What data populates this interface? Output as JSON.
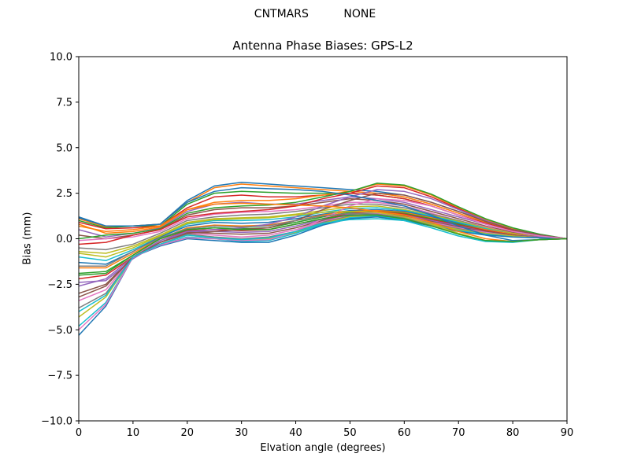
{
  "figure": {
    "suptitle_left": "CNTMARS",
    "suptitle_right": "NONE"
  },
  "chart_data": {
    "type": "line",
    "title": "Antenna Phase Biases: GPS-L2",
    "xlabel": "Elvation angle (degrees)",
    "ylabel": "Bias (mm)",
    "xlim": [
      0,
      90
    ],
    "ylim": [
      -10.0,
      10.0
    ],
    "xticks": [
      0,
      10,
      20,
      30,
      40,
      50,
      60,
      70,
      80,
      90
    ],
    "xtick_labels": [
      "0",
      "10",
      "20",
      "30",
      "40",
      "50",
      "60",
      "70",
      "80",
      "90"
    ],
    "yticks": [
      -10.0,
      -7.5,
      -5.0,
      -2.5,
      0.0,
      2.5,
      5.0,
      7.5,
      10.0
    ],
    "ytick_labels": [
      "−10.0",
      "−7.5",
      "−5.0",
      "−2.5",
      "0.0",
      "2.5",
      "5.0",
      "7.5",
      "10.0"
    ],
    "grid": false,
    "legend": "none",
    "colors": [
      "#1f77b4",
      "#ff7f0e",
      "#2ca02c",
      "#d62728",
      "#9467bd",
      "#8c564b",
      "#e377c2",
      "#7f7f7f",
      "#bcbd22",
      "#17becf"
    ],
    "x": [
      0,
      5,
      10,
      15,
      20,
      25,
      30,
      35,
      40,
      45,
      50,
      55,
      60,
      65,
      70,
      75,
      80,
      85,
      90
    ],
    "series": [
      {
        "values": [
          1.2,
          0.7,
          0.7,
          0.8,
          2.1,
          2.9,
          3.1,
          3.0,
          2.9,
          2.8,
          2.7,
          2.6,
          2.4,
          2.0,
          1.5,
          1.0,
          0.5,
          0.2,
          0.0
        ]
      },
      {
        "values": [
          1.1,
          0.65,
          0.7,
          0.8,
          2.0,
          2.8,
          3.0,
          2.9,
          2.8,
          2.7,
          2.6,
          2.5,
          2.3,
          1.9,
          1.4,
          0.9,
          0.5,
          0.2,
          0.0
        ]
      },
      {
        "values": [
          1.0,
          0.6,
          0.7,
          0.7,
          1.9,
          2.5,
          2.6,
          2.55,
          2.5,
          2.5,
          2.5,
          2.4,
          2.2,
          1.8,
          1.3,
          0.85,
          0.45,
          0.2,
          0.0
        ]
      },
      {
        "values": [
          0.9,
          0.55,
          0.6,
          0.7,
          1.7,
          2.3,
          2.4,
          2.3,
          2.3,
          2.4,
          2.5,
          2.4,
          2.2,
          1.8,
          1.3,
          0.85,
          0.45,
          0.2,
          0.0
        ]
      },
      {
        "values": [
          0.5,
          0.1,
          0.3,
          0.6,
          1.5,
          1.9,
          2.0,
          1.9,
          1.9,
          2.1,
          2.3,
          2.2,
          2.0,
          1.6,
          1.2,
          0.8,
          0.4,
          0.2,
          0.0
        ]
      },
      {
        "values": [
          0.2,
          0.0,
          0.2,
          0.5,
          1.3,
          1.6,
          1.7,
          1.7,
          1.8,
          2.0,
          2.2,
          2.1,
          1.9,
          1.5,
          1.1,
          0.7,
          0.35,
          0.15,
          0.0
        ]
      },
      {
        "values": [
          -0.1,
          0.0,
          0.1,
          0.4,
          1.1,
          1.35,
          1.45,
          1.5,
          1.6,
          1.8,
          2.0,
          2.0,
          1.8,
          1.4,
          1.0,
          0.65,
          0.3,
          0.1,
          0.0
        ]
      },
      {
        "values": [
          -0.5,
          -0.6,
          -0.3,
          0.3,
          1.0,
          1.2,
          1.3,
          1.35,
          1.5,
          1.7,
          1.9,
          1.9,
          1.7,
          1.35,
          1.0,
          0.6,
          0.3,
          0.1,
          0.0
        ]
      },
      {
        "values": [
          -0.7,
          -0.8,
          -0.4,
          0.2,
          0.9,
          1.1,
          1.15,
          1.2,
          1.35,
          1.55,
          1.75,
          1.8,
          1.6,
          1.3,
          0.95,
          0.6,
          0.3,
          0.1,
          0.0
        ]
      },
      {
        "values": [
          -1.0,
          -1.2,
          -0.6,
          0.1,
          0.8,
          1.0,
          1.0,
          1.05,
          1.2,
          1.45,
          1.65,
          1.7,
          1.55,
          1.25,
          0.9,
          0.55,
          0.25,
          0.1,
          0.0
        ]
      },
      {
        "values": [
          -1.3,
          -1.4,
          -0.7,
          0.1,
          0.7,
          0.9,
          0.85,
          0.9,
          1.1,
          1.35,
          1.55,
          1.6,
          1.5,
          1.2,
          0.85,
          0.5,
          0.25,
          0.1,
          0.0
        ]
      },
      {
        "values": [
          -1.6,
          -1.6,
          -0.8,
          0.0,
          0.6,
          0.75,
          0.7,
          0.75,
          1.0,
          1.3,
          1.5,
          1.55,
          1.45,
          1.15,
          0.8,
          0.5,
          0.25,
          0.1,
          0.0
        ]
      },
      {
        "values": [
          -1.9,
          -1.8,
          -0.9,
          0.0,
          0.5,
          0.6,
          0.55,
          0.6,
          0.9,
          1.2,
          1.45,
          1.5,
          1.4,
          1.1,
          0.8,
          0.45,
          0.2,
          0.1,
          0.0
        ]
      },
      {
        "values": [
          -2.2,
          -2.0,
          -1.0,
          -0.1,
          0.45,
          0.5,
          0.45,
          0.5,
          0.8,
          1.1,
          1.4,
          1.5,
          1.35,
          1.05,
          0.75,
          0.45,
          0.2,
          0.1,
          0.0
        ]
      },
      {
        "values": [
          -2.6,
          -2.2,
          -1.0,
          -0.1,
          0.4,
          0.4,
          0.35,
          0.4,
          0.7,
          1.05,
          1.35,
          1.45,
          1.3,
          1.0,
          0.7,
          0.4,
          0.2,
          0.1,
          0.0
        ]
      },
      {
        "values": [
          -3.0,
          -2.5,
          -1.0,
          -0.2,
          0.35,
          0.3,
          0.25,
          0.3,
          0.6,
          1.0,
          1.3,
          1.4,
          1.25,
          0.95,
          0.65,
          0.4,
          0.2,
          0.05,
          0.0
        ]
      },
      {
        "values": [
          -3.4,
          -2.8,
          -1.0,
          -0.2,
          0.3,
          0.2,
          0.1,
          0.2,
          0.5,
          0.95,
          1.3,
          1.4,
          1.2,
          0.9,
          0.6,
          0.35,
          0.15,
          0.05,
          0.0
        ]
      },
      {
        "values": [
          -3.8,
          -3.0,
          -1.0,
          -0.3,
          0.25,
          0.1,
          0.0,
          0.1,
          0.4,
          0.9,
          1.25,
          1.35,
          1.15,
          0.85,
          0.55,
          0.3,
          0.15,
          0.05,
          0.0
        ]
      },
      {
        "values": [
          -4.3,
          -3.2,
          -1.0,
          -0.3,
          0.2,
          0.05,
          -0.1,
          0.0,
          0.35,
          0.85,
          1.2,
          1.3,
          1.1,
          0.8,
          0.5,
          0.3,
          0.15,
          0.05,
          0.0
        ]
      },
      {
        "values": [
          -4.8,
          -3.5,
          -1.0,
          -0.35,
          0.1,
          0.0,
          -0.15,
          -0.1,
          0.3,
          0.8,
          1.15,
          1.25,
          1.05,
          0.75,
          0.45,
          0.25,
          0.1,
          0.05,
          0.0
        ]
      },
      {
        "values": [
          -5.3,
          -3.7,
          -1.0,
          -0.4,
          0.0,
          -0.1,
          -0.2,
          -0.2,
          0.2,
          0.75,
          1.1,
          1.2,
          1.0,
          0.7,
          0.4,
          0.2,
          0.1,
          0.05,
          0.0
        ]
      },
      {
        "values": [
          0.8,
          0.3,
          0.4,
          0.65,
          1.6,
          2.0,
          2.1,
          2.1,
          2.2,
          2.4,
          2.6,
          3.0,
          2.9,
          2.4,
          1.7,
          1.05,
          0.55,
          0.2,
          0.0
        ]
      },
      {
        "values": [
          0.0,
          0.2,
          0.3,
          0.55,
          1.4,
          1.7,
          1.8,
          1.85,
          2.0,
          2.3,
          2.6,
          3.05,
          2.95,
          2.45,
          1.75,
          1.1,
          0.6,
          0.25,
          0.0
        ]
      },
      {
        "values": [
          -0.3,
          -0.2,
          0.2,
          0.5,
          1.2,
          1.4,
          1.5,
          1.6,
          1.8,
          2.2,
          2.5,
          2.9,
          2.8,
          2.3,
          1.65,
          1.0,
          0.5,
          0.2,
          0.0
        ]
      },
      {
        "values": [
          -2.4,
          -2.3,
          -1.1,
          -0.2,
          0.4,
          0.5,
          0.6,
          0.8,
          1.2,
          1.8,
          2.3,
          2.7,
          2.6,
          2.2,
          1.6,
          1.0,
          0.5,
          0.2,
          0.0
        ]
      },
      {
        "values": [
          -3.2,
          -2.6,
          -1.0,
          -0.2,
          0.3,
          0.4,
          0.5,
          0.6,
          1.0,
          1.6,
          2.1,
          2.5,
          2.4,
          2.0,
          1.5,
          0.95,
          0.5,
          0.2,
          0.0
        ]
      },
      {
        "values": [
          -5.0,
          -3.6,
          -1.0,
          -0.35,
          0.05,
          0.0,
          -0.1,
          -0.05,
          0.4,
          1.1,
          1.8,
          2.2,
          2.1,
          1.8,
          1.3,
          0.8,
          0.4,
          0.15,
          0.0
        ]
      },
      {
        "values": [
          -1.5,
          -1.5,
          -0.7,
          0.05,
          0.55,
          0.7,
          0.65,
          0.7,
          1.0,
          1.25,
          1.4,
          1.35,
          1.15,
          0.75,
          0.25,
          -0.1,
          -0.15,
          -0.05,
          0.0
        ]
      },
      {
        "values": [
          -0.8,
          -1.0,
          -0.5,
          0.15,
          0.85,
          1.05,
          1.1,
          1.15,
          1.3,
          1.45,
          1.5,
          1.45,
          1.2,
          0.8,
          0.3,
          -0.1,
          -0.15,
          -0.05,
          0.0
        ]
      },
      {
        "values": [
          -4.0,
          -3.1,
          -1.0,
          -0.3,
          0.2,
          0.05,
          -0.05,
          0.05,
          0.4,
          0.85,
          1.05,
          1.1,
          1.0,
          0.6,
          0.15,
          -0.15,
          -0.2,
          -0.05,
          0.0
        ]
      },
      {
        "values": [
          1.15,
          0.7,
          0.7,
          0.8,
          2.0,
          2.6,
          2.8,
          2.75,
          2.7,
          2.6,
          2.4,
          2.1,
          1.8,
          1.3,
          0.7,
          0.2,
          -0.1,
          -0.05,
          0.0
        ]
      },
      {
        "values": [
          0.7,
          0.4,
          0.5,
          0.7,
          1.6,
          1.9,
          1.95,
          1.9,
          1.85,
          1.8,
          1.7,
          1.5,
          1.3,
          0.9,
          0.4,
          0.0,
          -0.15,
          -0.05,
          0.0
        ]
      },
      {
        "values": [
          -2.0,
          -1.9,
          -0.9,
          0.0,
          0.5,
          0.6,
          0.5,
          0.5,
          0.8,
          1.1,
          1.3,
          1.3,
          1.1,
          0.7,
          0.25,
          -0.1,
          -0.15,
          -0.05,
          0.0
        ]
      }
    ]
  }
}
